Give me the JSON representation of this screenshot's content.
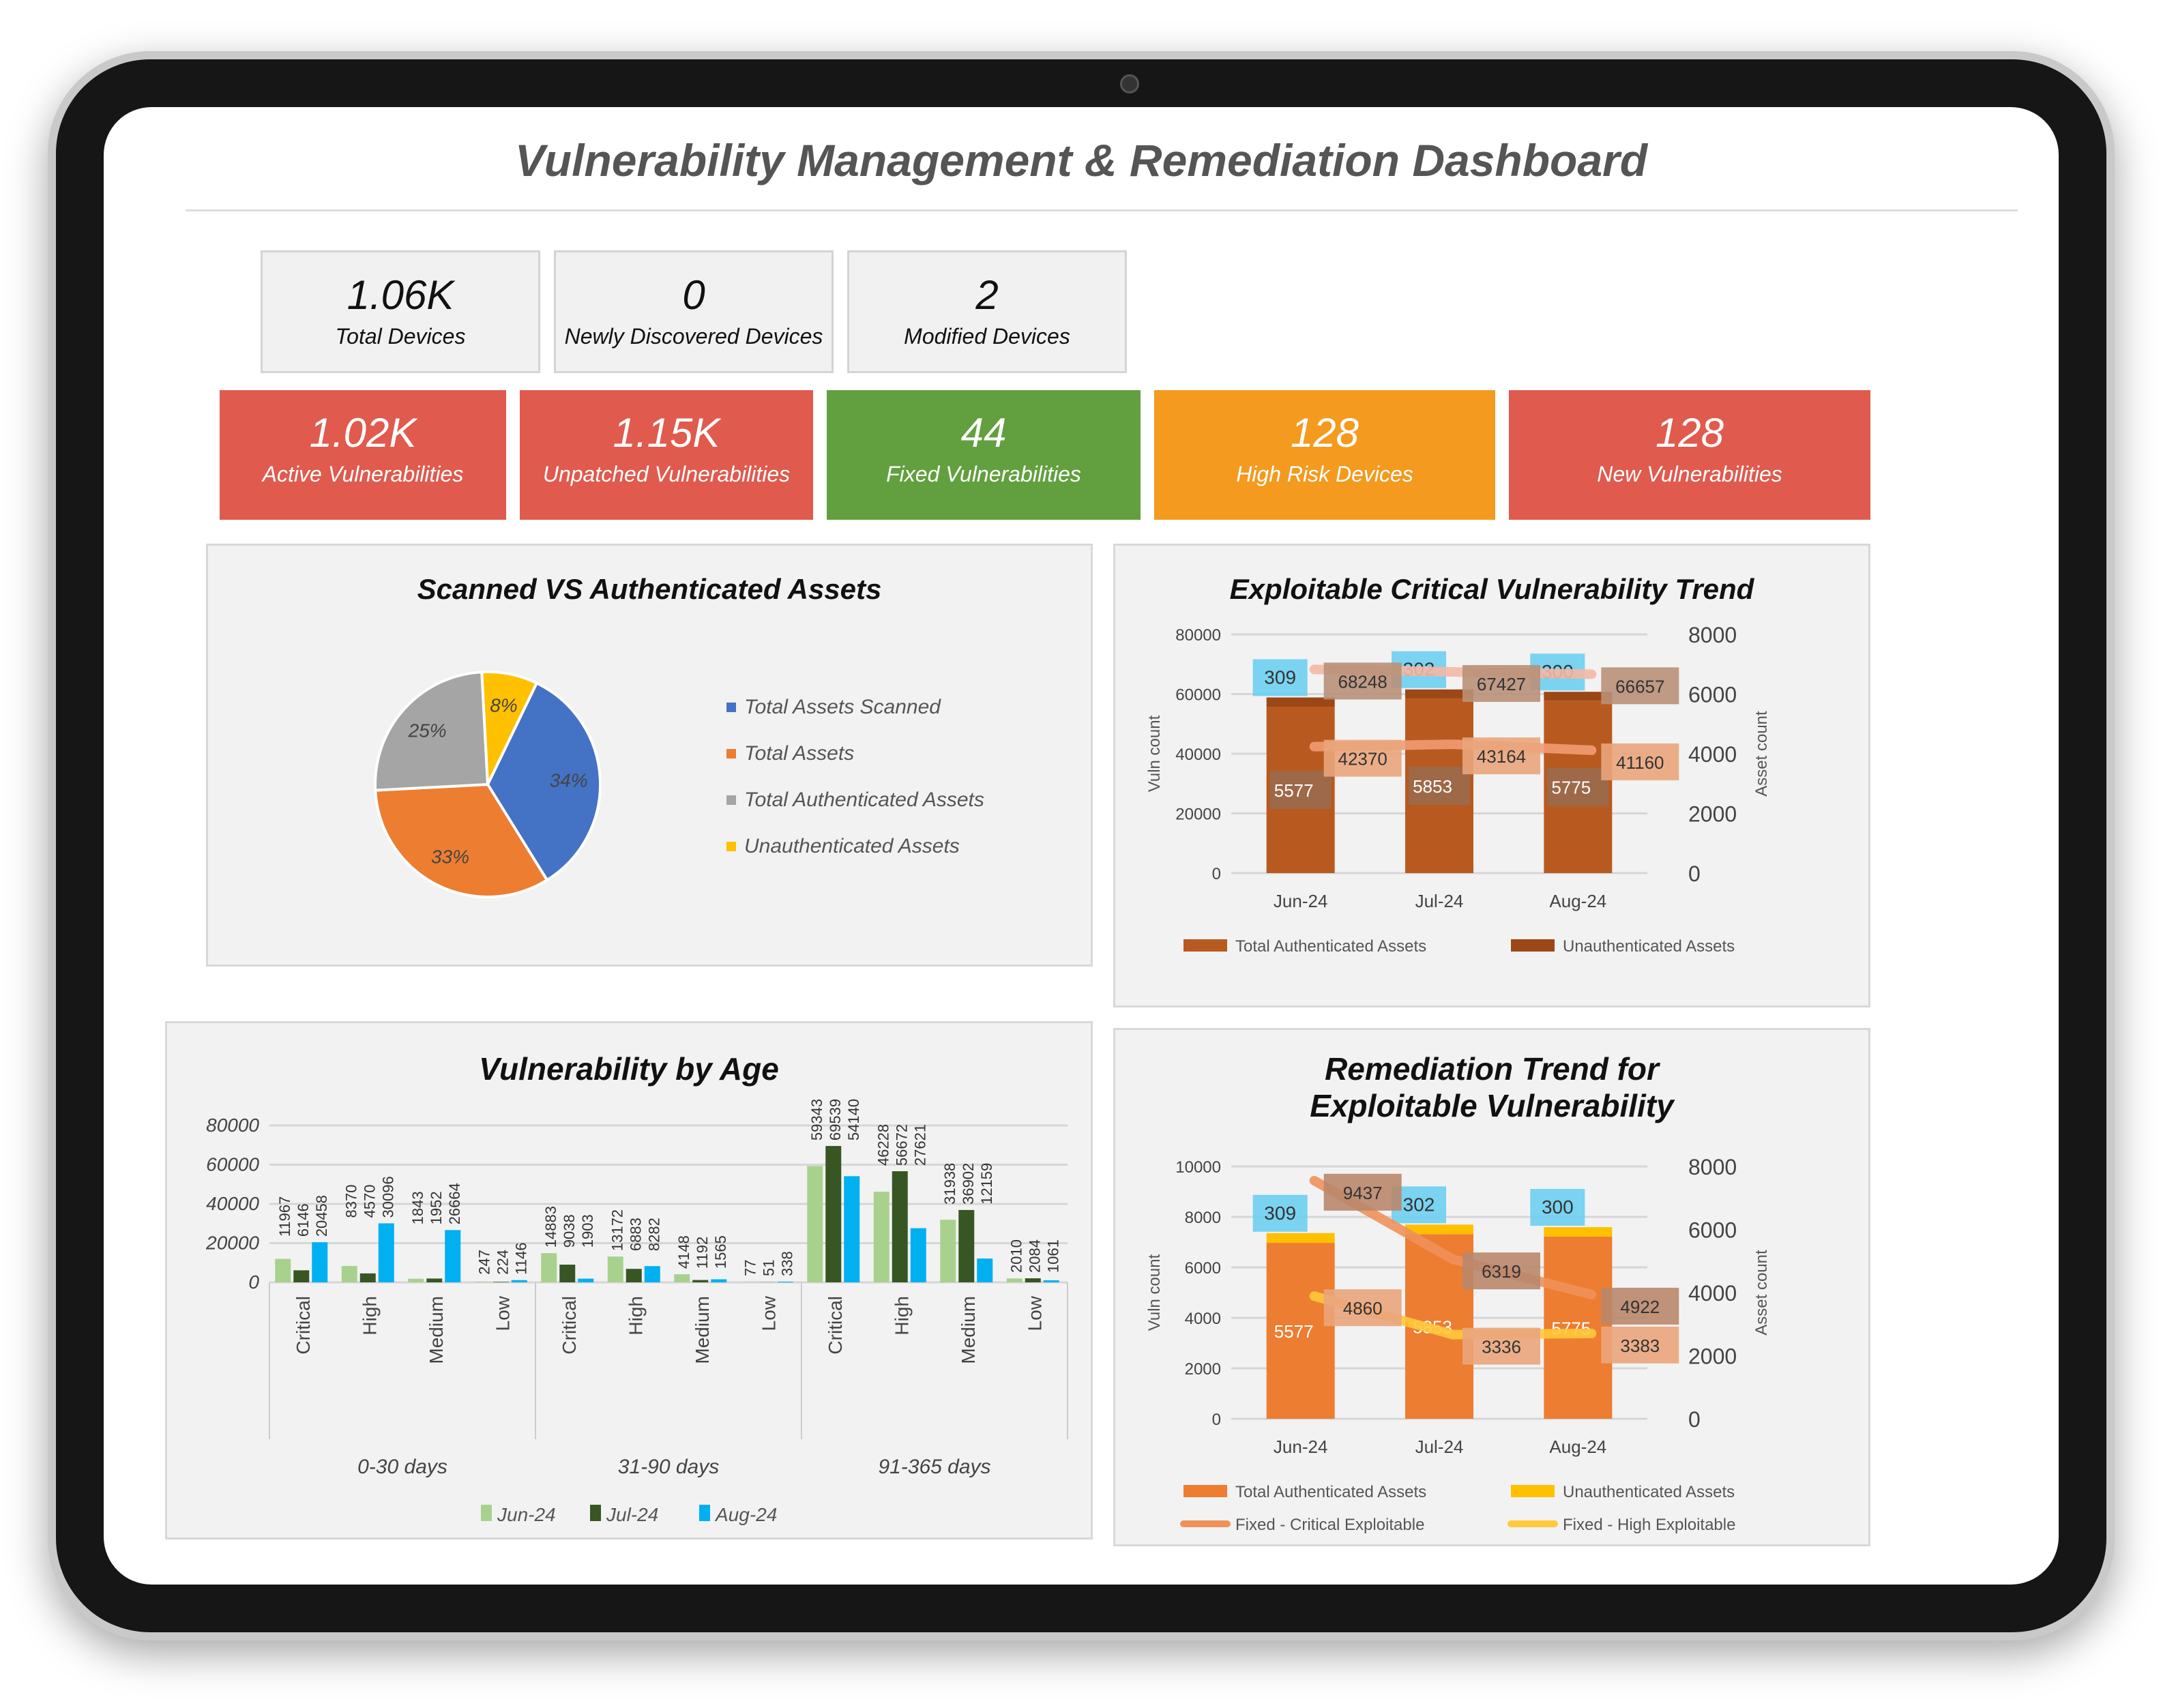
{
  "title": "Vulnerability Management & Remediation Dashboard",
  "kpi_top": [
    {
      "value": "1.06K",
      "label": "Total Devices"
    },
    {
      "value": "0",
      "label": "Newly Discovered Devices"
    },
    {
      "value": "2",
      "label": "Modified Devices"
    }
  ],
  "kpi_colored": [
    {
      "value": "1.02K",
      "label": "Active Vulnerabilities",
      "color": "#e05a4e"
    },
    {
      "value": "1.15K",
      "label": "Unpatched Vulnerabilities",
      "color": "#e05a4e"
    },
    {
      "value": "44",
      "label": "Fixed Vulnerabilities",
      "color": "#62a03f"
    },
    {
      "value": "128",
      "label": "High Risk Devices",
      "color": "#f39a1f"
    },
    {
      "value": "128",
      "label": "New Vulnerabilities",
      "color": "#e05a4e"
    }
  ],
  "chart_data": [
    {
      "type": "pie",
      "title": "Scanned VS Authenticated Assets",
      "legend_position": "right",
      "slices": [
        {
          "label": "Total Assets Scanned",
          "value": 34,
          "color": "#4472c4"
        },
        {
          "label": "Total Assets",
          "value": 33,
          "color": "#ed7d31"
        },
        {
          "label": "Total Authenticated Assets",
          "value": 25,
          "color": "#a5a5a5"
        },
        {
          "label": "Unauthenticated Assets",
          "value": 8,
          "color": "#ffc000"
        }
      ],
      "slice_labels": [
        "34%",
        "33%",
        "25%",
        "8%"
      ]
    },
    {
      "type": "bar+line",
      "title": "Exploitable Critical Vulnerability Trend",
      "categories": [
        "Jun-24",
        "Jul-24",
        "Aug-24"
      ],
      "ylabel": "Vuln count",
      "y2label": "Asset count",
      "ylim": [
        0,
        80000
      ],
      "yticks": [
        0,
        20000,
        40000,
        60000,
        80000
      ],
      "y2lim": [
        0,
        8000
      ],
      "y2ticks": [
        0,
        2000,
        4000,
        6000,
        8000
      ],
      "grid": true,
      "legend_position": "bottom",
      "bars": [
        {
          "name": "Total Authenticated Assets",
          "values": [
            5577,
            5853,
            5775
          ],
          "color": "#b85a1f",
          "label_bg": "#9a6a4c"
        },
        {
          "name": "Unauthenticated Assets",
          "values": [
            309,
            302,
            300
          ],
          "color": "#9c4716",
          "label_bg": "#6dcff0"
        }
      ],
      "lines": [
        {
          "values": [
            68248,
            67427,
            66657
          ],
          "color": "#f4b8a6",
          "label_bg": "#b99078"
        },
        {
          "values": [
            42370,
            43164,
            41160
          ],
          "color": "#f29b72",
          "label_bg": "#eaa57c"
        }
      ]
    },
    {
      "type": "grouped-bar",
      "title": "Vulnerability by Age",
      "groups": [
        "0-30 days",
        "31-90 days",
        "91-365 days"
      ],
      "categories": [
        "Critical",
        "High",
        "Medium",
        "Low"
      ],
      "ylim": [
        0,
        80000
      ],
      "yticks": [
        0,
        20000,
        40000,
        60000,
        80000
      ],
      "grid": true,
      "legend_position": "bottom",
      "series": [
        {
          "name": "Jun-24",
          "color": "#a9d18e",
          "values": [
            [
              11967,
              8370,
              1843,
              247
            ],
            [
              14883,
              13172,
              4148,
              77
            ],
            [
              59343,
              46228,
              31938,
              2010
            ]
          ]
        },
        {
          "name": "Jul-24",
          "color": "#375623",
          "values": [
            [
              6146,
              4570,
              1952,
              224
            ],
            [
              9038,
              6883,
              1192,
              51
            ],
            [
              69539,
              56672,
              36902,
              2084
            ]
          ]
        },
        {
          "name": "Aug-24",
          "color": "#00b0f0",
          "values": [
            [
              20458,
              30096,
              26664,
              1146
            ],
            [
              1903,
              8282,
              1565,
              338
            ],
            [
              54140,
              27621,
              12159,
              1061
            ]
          ]
        }
      ]
    },
    {
      "type": "bar+line",
      "title": "Remediation Trend for Exploitable Vulnerability",
      "categories": [
        "Jun-24",
        "Jul-24",
        "Aug-24"
      ],
      "ylabel": "Vuln count",
      "y2label": "Asset count",
      "ylim": [
        0,
        10000
      ],
      "yticks": [
        0,
        2000,
        4000,
        6000,
        8000,
        10000
      ],
      "y2lim": [
        0,
        8000
      ],
      "y2ticks": [
        0,
        2000,
        4000,
        6000,
        8000
      ],
      "grid": true,
      "legend_position": "bottom",
      "bars": [
        {
          "name": "Total Authenticated Assets",
          "values": [
            5577,
            5853,
            5775
          ],
          "color": "#ed7d31",
          "label_bg": "none"
        },
        {
          "name": "Unauthenticated Assets",
          "values": [
            309,
            302,
            300
          ],
          "color": "#ffc000",
          "label_bg": "#6dcff0"
        }
      ],
      "lines": [
        {
          "name": "Fixed - Critical Exploitable",
          "values": [
            9437,
            6319,
            4922
          ],
          "color": "#f0915a",
          "label_bg": "#b9876b"
        },
        {
          "name": "Fixed - High Exploitable",
          "values": [
            4860,
            3336,
            3383
          ],
          "color": "#ffc93c",
          "label_bg": "#eaa57c"
        }
      ]
    }
  ]
}
